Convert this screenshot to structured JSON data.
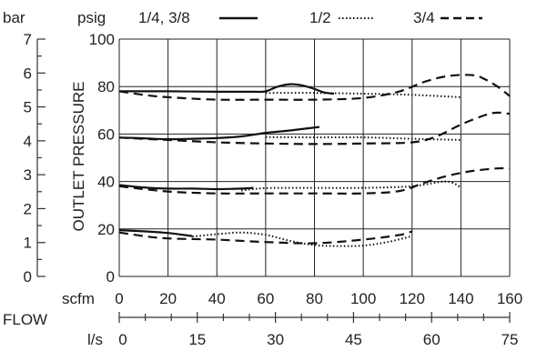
{
  "chart_data": {
    "type": "line",
    "units": {
      "bar": "bar",
      "psig": "psig",
      "scfm": "scfm",
      "ls": "l/s"
    },
    "ylabel": "OUTLET PRESSURE",
    "xlabel": "FLOW",
    "psig_ticks": [
      "0",
      "20",
      "40",
      "60",
      "80",
      "100"
    ],
    "bar_ticks": [
      "0",
      "1",
      "2",
      "3",
      "4",
      "5",
      "6",
      "7"
    ],
    "scfm_ticks": [
      "0",
      "20",
      "40",
      "60",
      "80",
      "100",
      "120",
      "140",
      "160"
    ],
    "ls_ticks": [
      "0",
      "15",
      "30",
      "45",
      "60",
      "75"
    ],
    "xlim_scfm": [
      0,
      160
    ],
    "ylim_psig": [
      0,
      100
    ],
    "grid": true,
    "legend_position": "top",
    "series": [
      {
        "name": "1/4, 3/8",
        "style": "solid",
        "curves": [
          {
            "x": [
              0,
              20,
              40,
              55,
              60,
              65,
              70,
              75,
              80,
              84,
              88
            ],
            "y": [
              78,
              78,
              77.8,
              77.8,
              78,
              80,
              81,
              80.5,
              79,
              77.5,
              77
            ]
          },
          {
            "x": [
              0,
              10,
              20,
              30,
              40,
              50,
              60,
              70,
              82
            ],
            "y": [
              58.5,
              58.2,
              57.8,
              58,
              58.3,
              59,
              60.5,
              61.5,
              63
            ]
          },
          {
            "x": [
              0,
              10,
              20,
              30,
              40,
              50,
              55
            ],
            "y": [
              38.5,
              37.5,
              37,
              37,
              36.8,
              37,
              37.3
            ]
          },
          {
            "x": [
              0,
              10,
              20,
              30
            ],
            "y": [
              19.5,
              19,
              18.3,
              17
            ]
          }
        ]
      },
      {
        "name": "1/2",
        "style": "dotted",
        "curves": [
          {
            "x": [
              60,
              80,
              100,
              120,
              140
            ],
            "y": [
              77.3,
              77.3,
              77,
              76.5,
              75.5
            ]
          },
          {
            "x": [
              60,
              80,
              100,
              120,
              140
            ],
            "y": [
              58.7,
              58.6,
              58.6,
              58,
              57.5
            ]
          },
          {
            "x": [
              50,
              60,
              80,
              100,
              120,
              134,
              140
            ],
            "y": [
              36.2,
              37.2,
              37.3,
              37.3,
              38,
              40,
              37.5
            ]
          },
          {
            "x": [
              30,
              40,
              50,
              60,
              70,
              80,
              90,
              100,
              110,
              120
            ],
            "y": [
              16.8,
              17.8,
              18.5,
              17.5,
              15,
              13.2,
              12.8,
              13,
              14.5,
              17
            ]
          }
        ]
      },
      {
        "name": "3/4",
        "style": "dashed",
        "curves": [
          {
            "x": [
              0,
              10,
              20,
              40,
              60,
              80,
              100,
              115,
              125,
              135,
              145,
              150,
              155,
              160
            ],
            "y": [
              78,
              76.5,
              75.5,
              74.5,
              74.5,
              74.5,
              75.2,
              78,
              82,
              84.5,
              84.8,
              83,
              80,
              76
            ]
          },
          {
            "x": [
              0,
              20,
              40,
              60,
              80,
              100,
              120,
              130,
              140,
              150,
              155,
              160
            ],
            "y": [
              58.5,
              57.5,
              56.5,
              56,
              55.8,
              56,
              56.5,
              59,
              64,
              68,
              69,
              68.5
            ]
          },
          {
            "x": [
              0,
              20,
              40,
              60,
              80,
              100,
              115,
              125,
              135,
              145,
              155,
              160
            ],
            "y": [
              38,
              35.8,
              35,
              35,
              35,
              35,
              36,
              39.5,
              42.5,
              44.5,
              45.5,
              45.5
            ]
          },
          {
            "x": [
              0,
              10,
              20,
              40,
              60,
              80,
              100,
              115,
              120
            ],
            "y": [
              18.5,
              17,
              16,
              15.5,
              14.5,
              14,
              15.5,
              17.5,
              19
            ]
          }
        ]
      }
    ]
  }
}
